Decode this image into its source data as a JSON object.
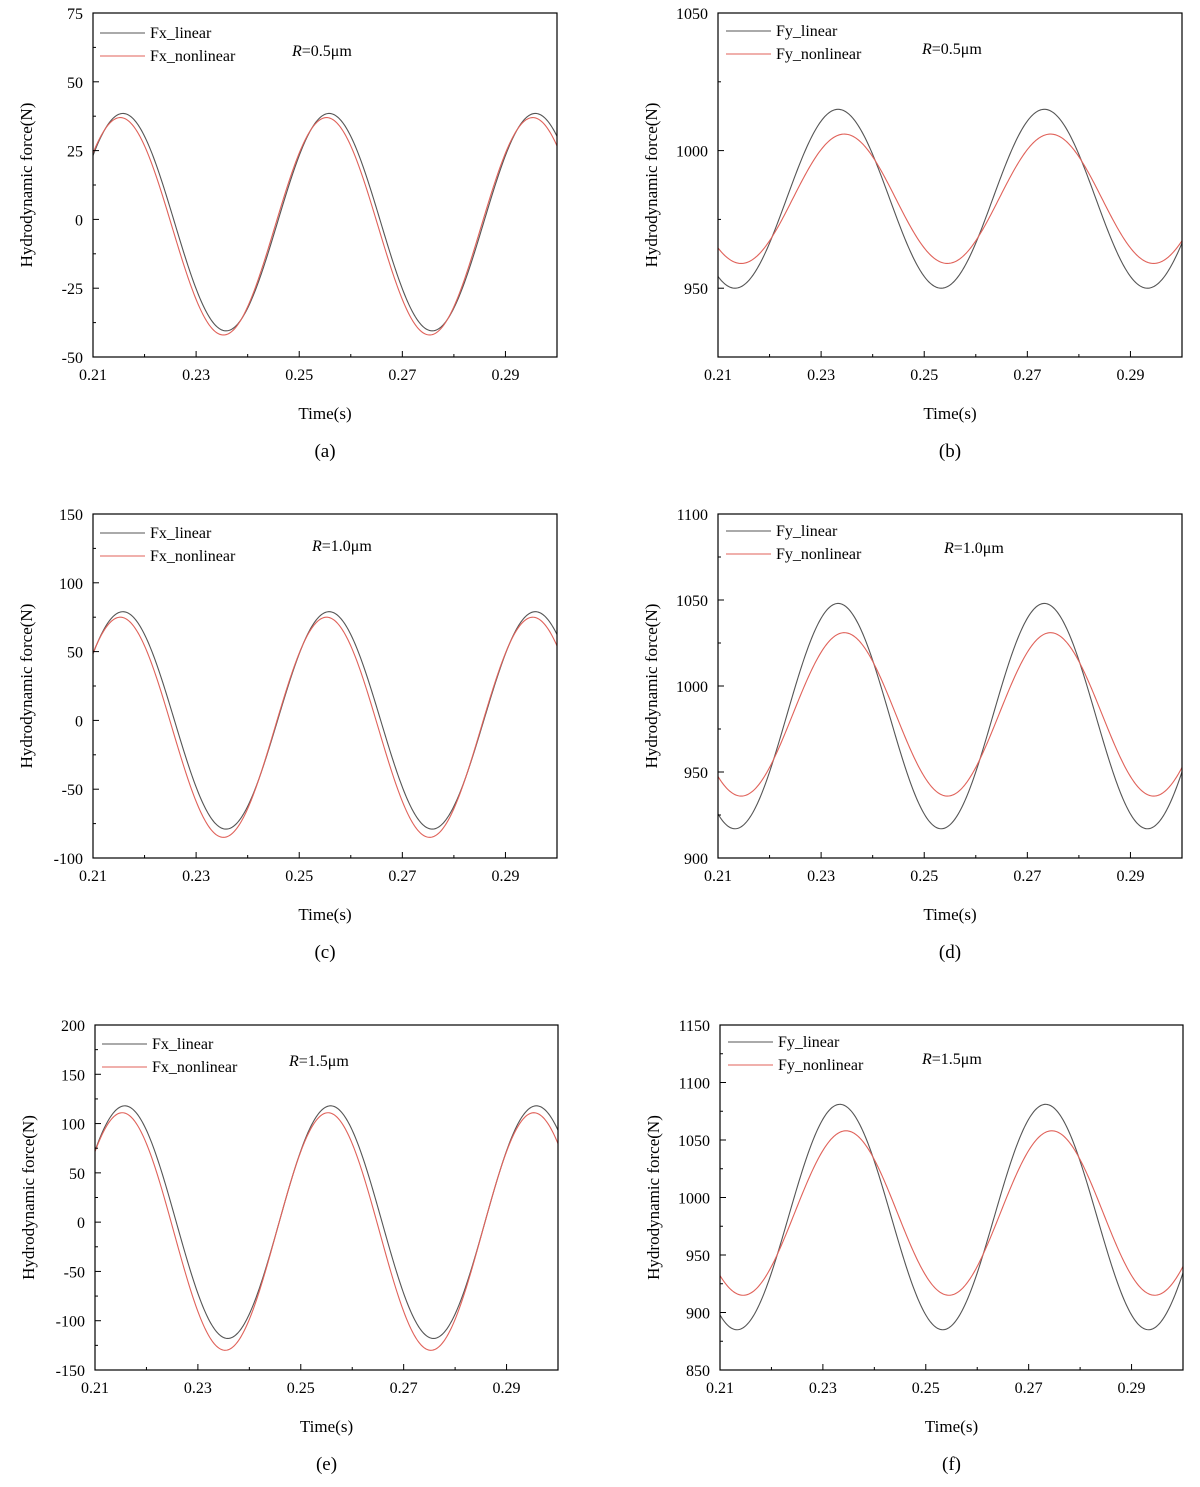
{
  "colors": {
    "linear": "#555555",
    "nonlinear": "#e0625a",
    "axis": "#000000"
  },
  "chart_data": [
    {
      "type": "line",
      "panel": "(a)",
      "annotation_prefix": "R",
      "annotation_suffix": "=0.5μm",
      "xlabel": "Time(s)",
      "ylabel": "Hydrodynamic force(N)",
      "xlim": [
        0.21,
        0.3
      ],
      "ylim": [
        -50,
        75
      ],
      "xticks": [
        0.21,
        0.23,
        0.25,
        0.27,
        0.29
      ],
      "xtick_labels": [
        "0.21",
        "0.23",
        "0.25",
        "0.27",
        "0.29"
      ],
      "yticks": [
        -50,
        -25,
        0,
        25,
        50,
        75
      ],
      "ytick_labels": [
        "-50",
        "-25",
        "0",
        "25",
        "50",
        "75"
      ],
      "period": 0.04,
      "series": [
        {
          "name": "Fx_linear",
          "mean": -1,
          "amplitude": 39.5,
          "peak_time": 0.2158
        },
        {
          "name": "Fx_nonlinear",
          "mean": -2.5,
          "amplitude": 39.5,
          "peak_time": 0.2153
        }
      ]
    },
    {
      "type": "line",
      "panel": "(b)",
      "annotation_prefix": "R",
      "annotation_suffix": "=0.5μm",
      "xlabel": "Time(s)",
      "ylabel": "Hydrodynamic force(N)",
      "xlim": [
        0.21,
        0.3
      ],
      "ylim": [
        925,
        1050
      ],
      "xticks": [
        0.21,
        0.23,
        0.25,
        0.27,
        0.29
      ],
      "xtick_labels": [
        "0.21",
        "0.23",
        "0.25",
        "0.27",
        "0.29"
      ],
      "yticks": [
        950,
        1000,
        1050
      ],
      "ytick_labels": [
        "950",
        "1000",
        "1050"
      ],
      "period": 0.04,
      "series": [
        {
          "name": "Fy_linear",
          "mean": 982.5,
          "amplitude": 32.5,
          "peak_time": 0.2333
        },
        {
          "name": "Fy_nonlinear",
          "mean": 982.5,
          "amplitude": 23.5,
          "peak_time": 0.2345
        }
      ]
    },
    {
      "type": "line",
      "panel": "(c)",
      "annotation_prefix": "R",
      "annotation_suffix": "=1.0μm",
      "xlabel": "Time(s)",
      "ylabel": "Hydrodynamic force(N)",
      "xlim": [
        0.21,
        0.3
      ],
      "ylim": [
        -100,
        150
      ],
      "xticks": [
        0.21,
        0.23,
        0.25,
        0.27,
        0.29
      ],
      "xtick_labels": [
        "0.21",
        "0.23",
        "0.25",
        "0.27",
        "0.29"
      ],
      "yticks": [
        -100,
        -50,
        0,
        50,
        100,
        150
      ],
      "ytick_labels": [
        "-100",
        "-50",
        "0",
        "50",
        "100",
        "150"
      ],
      "period": 0.04,
      "series": [
        {
          "name": "Fx_linear",
          "mean": 0,
          "amplitude": 79,
          "peak_time": 0.2158
        },
        {
          "name": "Fx_nonlinear",
          "mean": -5,
          "amplitude": 80,
          "peak_time": 0.2153
        }
      ]
    },
    {
      "type": "line",
      "panel": "(d)",
      "annotation_prefix": "R",
      "annotation_suffix": "=1.0μm",
      "xlabel": "Time(s)",
      "ylabel": "Hydrodynamic force(N)",
      "xlim": [
        0.21,
        0.3
      ],
      "ylim": [
        900,
        1100
      ],
      "xticks": [
        0.21,
        0.23,
        0.25,
        0.27,
        0.29
      ],
      "xtick_labels": [
        "0.21",
        "0.23",
        "0.25",
        "0.27",
        "0.29"
      ],
      "yticks": [
        900,
        950,
        1000,
        1050,
        1100
      ],
      "ytick_labels": [
        "900",
        "950",
        "1000",
        "1050",
        "1100"
      ],
      "period": 0.04,
      "series": [
        {
          "name": "Fy_linear",
          "mean": 982.5,
          "amplitude": 65.5,
          "peak_time": 0.2333
        },
        {
          "name": "Fy_nonlinear",
          "mean": 983.5,
          "amplitude": 47.5,
          "peak_time": 0.2345
        }
      ]
    },
    {
      "type": "line",
      "panel": "(e)",
      "annotation_prefix": "R",
      "annotation_suffix": "=1.5μm",
      "xlabel": "Time(s)",
      "ylabel": "Hydrodynamic force(N)",
      "xlim": [
        0.21,
        0.3
      ],
      "ylim": [
        -150,
        200
      ],
      "xticks": [
        0.21,
        0.23,
        0.25,
        0.27,
        0.29
      ],
      "xtick_labels": [
        "0.21",
        "0.23",
        "0.25",
        "0.27",
        "0.29"
      ],
      "yticks": [
        -150,
        -100,
        -50,
        0,
        50,
        100,
        150,
        200
      ],
      "ytick_labels": [
        "-150",
        "-100",
        "-50",
        "0",
        "50",
        "100",
        "150",
        "200"
      ],
      "period": 0.04,
      "series": [
        {
          "name": "Fx_linear",
          "mean": 0,
          "amplitude": 118,
          "peak_time": 0.2158
        },
        {
          "name": "Fx_nonlinear",
          "mean": -9.5,
          "amplitude": 120.5,
          "peak_time": 0.2153
        }
      ]
    },
    {
      "type": "line",
      "panel": "(f)",
      "annotation_prefix": "R",
      "annotation_suffix": "=1.5μm",
      "xlabel": "Time(s)",
      "ylabel": "Hydrodynamic force(N)",
      "xlim": [
        0.21,
        0.3
      ],
      "ylim": [
        850,
        1150
      ],
      "xticks": [
        0.21,
        0.23,
        0.25,
        0.27,
        0.29
      ],
      "xtick_labels": [
        "0.21",
        "0.23",
        "0.25",
        "0.27",
        "0.29"
      ],
      "yticks": [
        850,
        900,
        950,
        1000,
        1050,
        1100,
        1150
      ],
      "ytick_labels": [
        "850",
        "900",
        "950",
        "1000",
        "1050",
        "1100",
        "1150"
      ],
      "period": 0.04,
      "series": [
        {
          "name": "Fy_linear",
          "mean": 983,
          "amplitude": 98,
          "peak_time": 0.2333
        },
        {
          "name": "Fy_nonlinear",
          "mean": 986.5,
          "amplitude": 71.5,
          "peak_time": 0.2345
        }
      ]
    }
  ]
}
